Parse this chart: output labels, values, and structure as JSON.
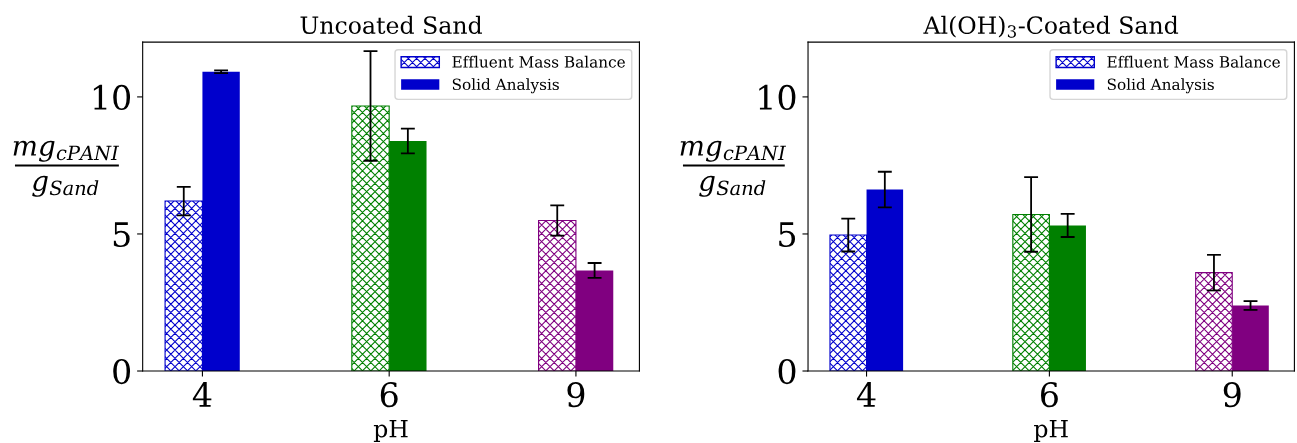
{
  "chart_data": [
    {
      "type": "bar",
      "title": "Uncoated Sand",
      "xlabel": "pH",
      "ylabel": "mg$_{cPANI}$\ng$_{Sand}$",
      "categories": [
        "4",
        "6",
        "9"
      ],
      "ylim": [
        0,
        12
      ],
      "yticks": [
        0,
        5,
        10
      ],
      "legend": "top right",
      "grid": false,
      "series": [
        {
          "name": "Effluent Mass Balance",
          "color": "#0000cc",
          "colors": [
            "#0000cc",
            "#008000",
            "#800080"
          ],
          "values": [
            6.2,
            9.67,
            5.49
          ],
          "errors": [
            0.52,
            2.0,
            0.55
          ]
        },
        {
          "name": "Solid Analysis",
          "color": "#0000cc",
          "colors": [
            "#0000cc",
            "#008000",
            "#800080"
          ],
          "values": [
            10.92,
            8.39,
            3.67
          ],
          "errors": [
            0.05,
            0.45,
            0.27
          ]
        }
      ]
    },
    {
      "type": "bar",
      "title": "Al(OH)$_{3}$-Coated Sand",
      "xlabel": "pH",
      "ylabel": "mg$_{cPANI}$\ng$_{Sand}$",
      "categories": [
        "4",
        "6",
        "9"
      ],
      "ylim": [
        0,
        12
      ],
      "yticks": [
        0,
        5,
        10
      ],
      "legend": "top right",
      "grid": false,
      "series": [
        {
          "name": "Effluent Mass Balance",
          "color": "#0000cc",
          "colors": [
            "#0000cc",
            "#008000",
            "#800080"
          ],
          "values": [
            4.96,
            5.71,
            3.59
          ],
          "errors": [
            0.6,
            1.36,
            0.65
          ]
        },
        {
          "name": "Solid Analysis",
          "color": "#0000cc",
          "colors": [
            "#0000cc",
            "#008000",
            "#800080"
          ],
          "values": [
            6.62,
            5.31,
            2.39
          ],
          "errors": [
            0.65,
            0.42,
            0.16
          ]
        }
      ]
    }
  ]
}
